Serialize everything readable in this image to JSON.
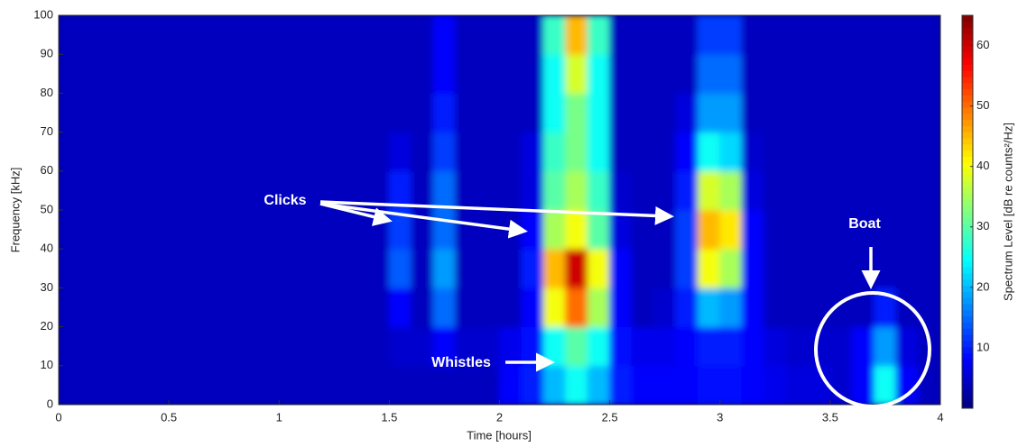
{
  "chart_data": {
    "type": "heatmap",
    "xlabel": "Time [hours]",
    "ylabel": "Frequency [kHz]",
    "colorbar_label": "Spectrum Level [dB re counts²/Hz]",
    "colormap": "jet",
    "xlim": [
      0,
      4
    ],
    "ylim": [
      0,
      100
    ],
    "clim": [
      0,
      65
    ],
    "xticks": [
      0,
      0.5,
      1,
      1.5,
      2,
      2.5,
      3,
      3.5,
      4
    ],
    "yticks": [
      0,
      10,
      20,
      30,
      40,
      50,
      60,
      70,
      80,
      90,
      100
    ],
    "cticks": [
      10,
      20,
      30,
      40,
      50,
      60
    ],
    "z": [
      [
        4,
        4,
        4,
        4,
        4,
        4,
        4,
        4,
        4,
        4,
        4,
        4,
        4,
        4,
        4,
        4,
        4,
        4,
        4,
        4,
        8,
        10,
        20,
        25,
        20,
        10,
        8,
        8,
        8,
        9,
        9,
        8,
        7,
        6,
        6,
        5,
        8,
        25,
        8,
        4
      ],
      [
        4,
        4,
        4,
        4,
        4,
        4,
        4,
        4,
        4,
        4,
        4,
        4,
        4,
        4,
        4,
        5,
        5,
        8,
        5,
        5,
        7,
        9,
        25,
        30,
        25,
        9,
        7,
        7,
        8,
        10,
        10,
        8,
        6,
        5,
        5,
        5,
        8,
        18,
        6,
        4
      ],
      [
        4,
        4,
        4,
        4,
        4,
        4,
        4,
        4,
        4,
        4,
        4,
        4,
        4,
        4,
        4,
        8,
        4,
        15,
        4,
        4,
        4,
        8,
        40,
        50,
        35,
        8,
        4,
        5,
        10,
        20,
        18,
        8,
        4,
        4,
        4,
        4,
        4,
        10,
        4,
        4
      ],
      [
        4,
        4,
        4,
        4,
        4,
        4,
        4,
        4,
        4,
        4,
        4,
        4,
        4,
        4,
        4,
        14,
        4,
        18,
        4,
        4,
        4,
        10,
        45,
        60,
        40,
        8,
        4,
        4,
        12,
        40,
        35,
        8,
        4,
        4,
        4,
        4,
        4,
        4,
        4,
        4
      ],
      [
        4,
        4,
        4,
        4,
        4,
        4,
        4,
        4,
        4,
        4,
        4,
        4,
        4,
        4,
        4,
        12,
        4,
        15,
        4,
        4,
        4,
        8,
        35,
        40,
        30,
        6,
        4,
        4,
        12,
        45,
        42,
        8,
        4,
        4,
        4,
        4,
        4,
        4,
        4,
        4
      ],
      [
        4,
        4,
        4,
        4,
        4,
        4,
        4,
        4,
        4,
        4,
        4,
        4,
        4,
        4,
        4,
        10,
        4,
        15,
        4,
        4,
        4,
        6,
        30,
        35,
        28,
        5,
        4,
        4,
        10,
        38,
        35,
        6,
        4,
        4,
        4,
        4,
        4,
        4,
        4,
        4
      ],
      [
        4,
        4,
        4,
        4,
        4,
        4,
        4,
        4,
        4,
        4,
        4,
        4,
        4,
        4,
        4,
        6,
        4,
        12,
        4,
        4,
        4,
        6,
        28,
        32,
        25,
        4,
        4,
        4,
        8,
        25,
        22,
        5,
        4,
        4,
        4,
        4,
        4,
        4,
        4,
        4
      ],
      [
        4,
        4,
        4,
        4,
        4,
        4,
        4,
        4,
        4,
        4,
        4,
        4,
        4,
        4,
        4,
        4,
        4,
        10,
        4,
        4,
        4,
        4,
        25,
        32,
        25,
        4,
        4,
        4,
        6,
        18,
        18,
        4,
        4,
        4,
        4,
        4,
        4,
        4,
        4,
        4
      ],
      [
        4,
        4,
        4,
        4,
        4,
        4,
        4,
        4,
        4,
        4,
        4,
        4,
        4,
        4,
        4,
        4,
        4,
        8,
        4,
        4,
        4,
        4,
        25,
        38,
        25,
        4,
        4,
        4,
        4,
        15,
        15,
        4,
        4,
        4,
        4,
        4,
        4,
        4,
        4,
        4
      ],
      [
        4,
        4,
        4,
        4,
        4,
        4,
        4,
        4,
        4,
        4,
        4,
        4,
        4,
        4,
        4,
        4,
        4,
        8,
        4,
        4,
        4,
        4,
        28,
        45,
        28,
        4,
        4,
        4,
        4,
        12,
        12,
        4,
        4,
        4,
        4,
        4,
        4,
        4,
        4,
        4
      ]
    ],
    "annotations": [
      {
        "text": "Clicks"
      },
      {
        "text": "Whistles"
      },
      {
        "text": "Boat"
      }
    ]
  }
}
